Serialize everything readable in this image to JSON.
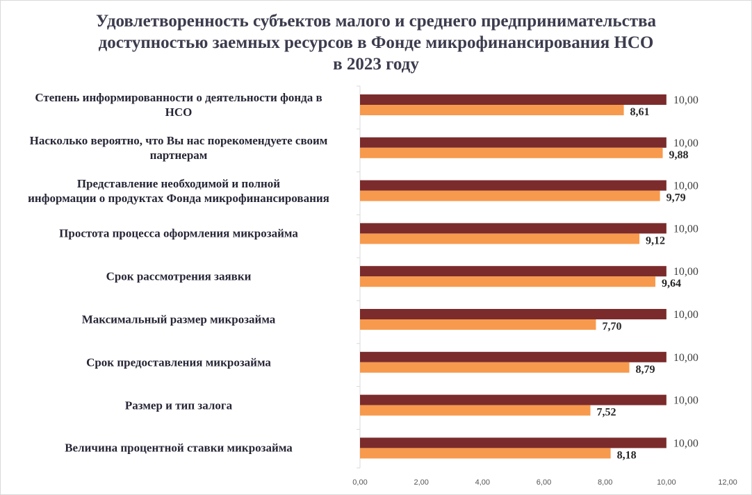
{
  "chart_data": {
    "type": "bar",
    "orientation": "horizontal",
    "title": [
      "Удовлетворенность субъектов малого и среднего предпринимательства",
      "доступностью заемных ресурсов в Фонде микрофинансирования НСО",
      "в 2023 году"
    ],
    "categories": [
      [
        "Степень информированности о деятельности  фонда в",
        "НСО"
      ],
      [
        "Насколько вероятно, что Вы нас порекомендуете своим",
        "партнерам"
      ],
      [
        "Представление необходимой и полной",
        "информации  о продуктах Фонда микрофинансирования"
      ],
      [
        "Простота процесса оформления микрозайма"
      ],
      [
        "Срок рассмотрения заявки"
      ],
      [
        "Максимальный размер микрозайма"
      ],
      [
        "Срок предоставления микрозайма"
      ],
      [
        "Размер и тип залога"
      ],
      [
        "Величина процентной ставки микрозайма"
      ]
    ],
    "series": [
      {
        "color": "#7b2b2b",
        "values": [
          10.0,
          10.0,
          10.0,
          10.0,
          10.0,
          10.0,
          10.0,
          10.0,
          10.0
        ],
        "labels": [
          "10,00",
          "10,00",
          "10,00",
          "10,00",
          "10,00",
          "10,00",
          "10,00",
          "10,00",
          "10,00"
        ]
      },
      {
        "color": "#f79a4d",
        "values": [
          8.61,
          9.88,
          9.79,
          9.12,
          9.64,
          7.7,
          8.79,
          7.52,
          8.18
        ],
        "labels": [
          "8,61",
          "9,88",
          "9,79",
          "9,12",
          "9,64",
          "7,70",
          "8,79",
          "7,52",
          "8,18"
        ]
      }
    ],
    "xlim": [
      0,
      12
    ],
    "xticks": [
      0,
      2,
      4,
      6,
      8,
      10,
      12
    ],
    "xtick_labels": [
      "0,00",
      "2,00",
      "4,00",
      "6,00",
      "8,00",
      "10,00",
      "12,00"
    ],
    "grid": false,
    "legend": "none"
  }
}
